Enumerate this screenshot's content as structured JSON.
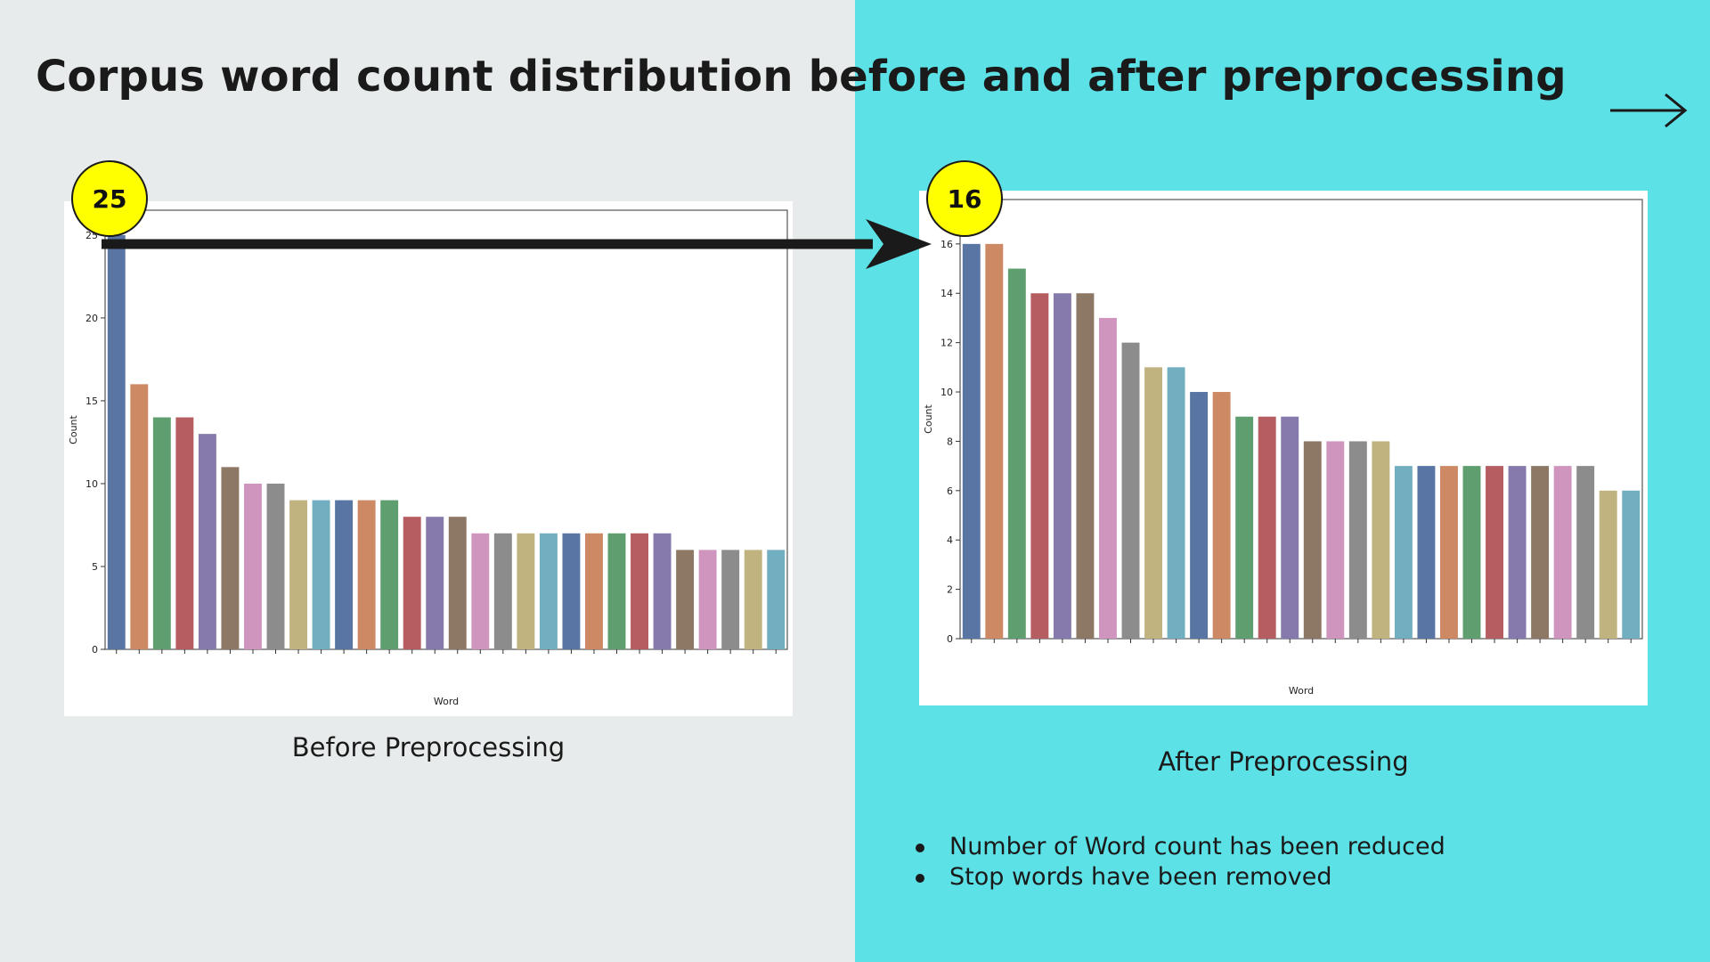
{
  "slide": {
    "title": "Corpus word count distribution before and after preprocessing",
    "caption_before": "Before Preprocessing",
    "caption_after": "After Preprocessing",
    "badge_before": "25",
    "badge_after": "16",
    "notes": [
      "Number of Word count has been reduced",
      "Stop words have been removed"
    ],
    "colors": {
      "left_background": "#e8ebeb",
      "right_background": "#5ce1e6",
      "badge": "#ffff00",
      "bar_palette": [
        "#5975a4",
        "#cc8963",
        "#5f9e6e",
        "#b55d60",
        "#857aab",
        "#8d7866",
        "#d095bf",
        "#8c8c8c",
        "#c1b37f",
        "#71aec0"
      ]
    },
    "icons": [
      "right-arrow-icon"
    ]
  },
  "chart_data": [
    {
      "type": "bar",
      "title": "",
      "xlabel": "Word",
      "ylabel": "Count",
      "ylim": [
        0,
        26.5
      ],
      "yticks": [
        0,
        5,
        10,
        15,
        20,
        25
      ],
      "grid": false,
      "values": [
        25,
        16,
        14,
        14,
        13,
        11,
        10,
        10,
        9,
        9,
        9,
        9,
        9,
        8,
        8,
        8,
        7,
        7,
        7,
        7,
        7,
        7,
        7,
        7,
        7,
        6,
        6,
        6,
        6,
        6
      ]
    },
    {
      "type": "bar",
      "title": "",
      "xlabel": "Word",
      "ylabel": "Count",
      "ylim": [
        0,
        17.8
      ],
      "yticks": [
        0,
        2,
        4,
        6,
        8,
        10,
        12,
        14,
        16
      ],
      "grid": false,
      "values": [
        16,
        16,
        15,
        14,
        14,
        14,
        13,
        12,
        11,
        11,
        10,
        10,
        9,
        9,
        9,
        8,
        8,
        8,
        8,
        7,
        7,
        7,
        7,
        7,
        7,
        7,
        7,
        7,
        6,
        6
      ]
    }
  ]
}
